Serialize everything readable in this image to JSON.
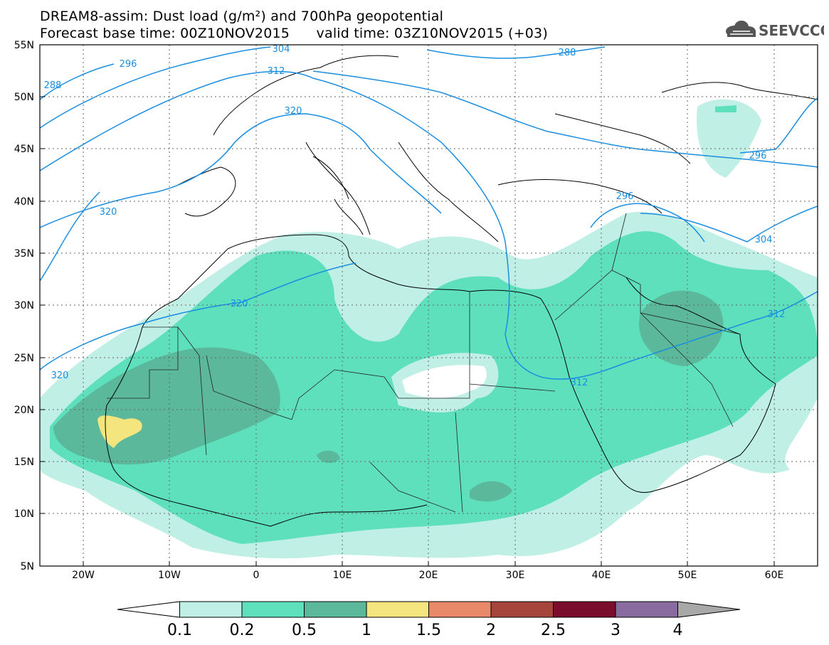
{
  "title_line1": "DREAM8-assim: Dust load (g/m²) and 700hPa geopotential",
  "title_line2": "Forecast base time: 00Z10NOV2015      valid time: 03Z10NOV2015 (+03)",
  "logo_text": "SEEVCCC",
  "logo_icon": "cloud-icon",
  "lat_labels": [
    "55N",
    "50N",
    "45N",
    "40N",
    "35N",
    "30N",
    "25N",
    "20N",
    "15N",
    "10N",
    "5N"
  ],
  "lon_labels": [
    "20W",
    "10W",
    "0",
    "10E",
    "20E",
    "30E",
    "40E",
    "50E",
    "60E"
  ],
  "contour_labels": [
    "304",
    "288",
    "296",
    "312",
    "288",
    "320",
    "320",
    "320",
    "296",
    "296",
    "304",
    "312",
    "312",
    "320"
  ],
  "colorbar": {
    "labels": [
      "0.1",
      "0.2",
      "0.5",
      "1",
      "1.5",
      "2",
      "2.5",
      "3",
      "4"
    ],
    "colors": [
      "#ffffff",
      "#c0efe6",
      "#5ee0bd",
      "#5bb89a",
      "#f5e57f",
      "#e8896a",
      "#a5453b",
      "#7a0c2c",
      "#8a6ba0",
      "#a8a8a8"
    ]
  },
  "colors": {
    "contour": "#1a8ee0",
    "dust_01": "#c0efe6",
    "dust_02": "#5ee0bd",
    "dust_05": "#5bb89a",
    "dust_1": "#f5e57f"
  }
}
